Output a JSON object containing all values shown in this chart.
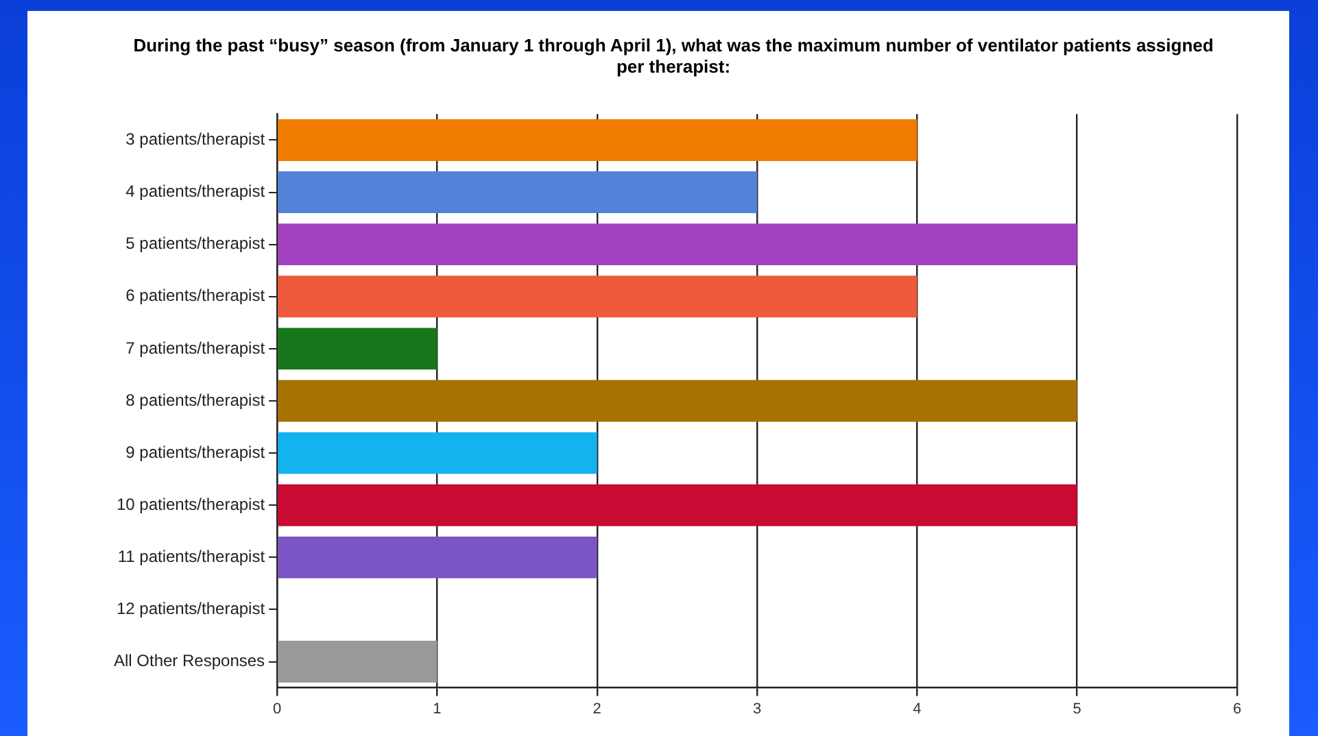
{
  "chart_data": {
    "type": "bar",
    "orientation": "horizontal",
    "title": "During the past “busy” season (from January 1 through April 1), what was the maximum number of ventilator patients assigned per therapist:",
    "categories": [
      "3 patients/therapist",
      "4 patients/therapist",
      "5 patients/therapist",
      "6 patients/therapist",
      "7 patients/therapist",
      "8 patients/therapist",
      "9 patients/therapist",
      "10 patients/therapist",
      "11 patients/therapist",
      "12 patients/therapist",
      "All Other Responses"
    ],
    "values": [
      4,
      3,
      5,
      4,
      1,
      5,
      2,
      5,
      2,
      0,
      1
    ],
    "colors": [
      "#f07c00",
      "#5383d8",
      "#a340c0",
      "#ee5a3b",
      "#16781a",
      "#a67200",
      "#12b3ee",
      "#c90a32",
      "#7b55c3",
      "#e0e0e0",
      "#9a9a9a"
    ],
    "xlim": [
      0,
      6
    ],
    "xticks": [
      0,
      1,
      2,
      3,
      4,
      5,
      6
    ],
    "grid": "x",
    "legend": false
  }
}
